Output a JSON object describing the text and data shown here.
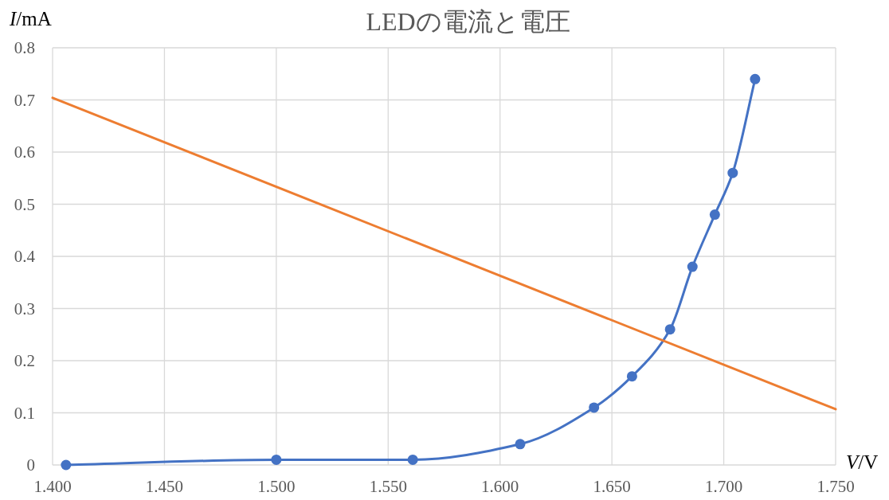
{
  "chart_data": {
    "type": "line",
    "title": "LEDの電流と電圧",
    "xlabel": "V/V",
    "ylabel": "I/mA",
    "xlim": [
      1.4,
      1.75
    ],
    "xticks": [
      {
        "value": 1.4,
        "label": "1.400"
      },
      {
        "value": 1.45,
        "label": "1.450"
      },
      {
        "value": 1.5,
        "label": "1.500"
      },
      {
        "value": 1.55,
        "label": "1.550"
      },
      {
        "value": 1.6,
        "label": "1.600"
      },
      {
        "value": 1.65,
        "label": "1.650"
      },
      {
        "value": 1.7,
        "label": "1.700"
      },
      {
        "value": 1.75,
        "label": "1.750"
      }
    ],
    "ylim": [
      0,
      0.8
    ],
    "yticks": [
      0,
      0.1,
      0.2,
      0.3,
      0.4,
      0.5,
      0.6,
      0.7,
      0.8
    ],
    "grid": true,
    "series": [
      {
        "color": "#4472c4",
        "marker": "circle",
        "x": [
          1.406,
          1.5,
          1.561,
          1.609,
          1.642,
          1.659,
          1.676,
          1.686,
          1.696,
          1.704,
          1.714
        ],
        "values": [
          0,
          0.01,
          0.01,
          0.04,
          0.11,
          0.17,
          0.26,
          0.38,
          0.48,
          0.56,
          0.74
        ]
      },
      {
        "color": "#ed7d31",
        "marker": "none",
        "x": [
          1.4,
          1.75
        ],
        "values": [
          0.704,
          0.107
        ]
      }
    ]
  }
}
